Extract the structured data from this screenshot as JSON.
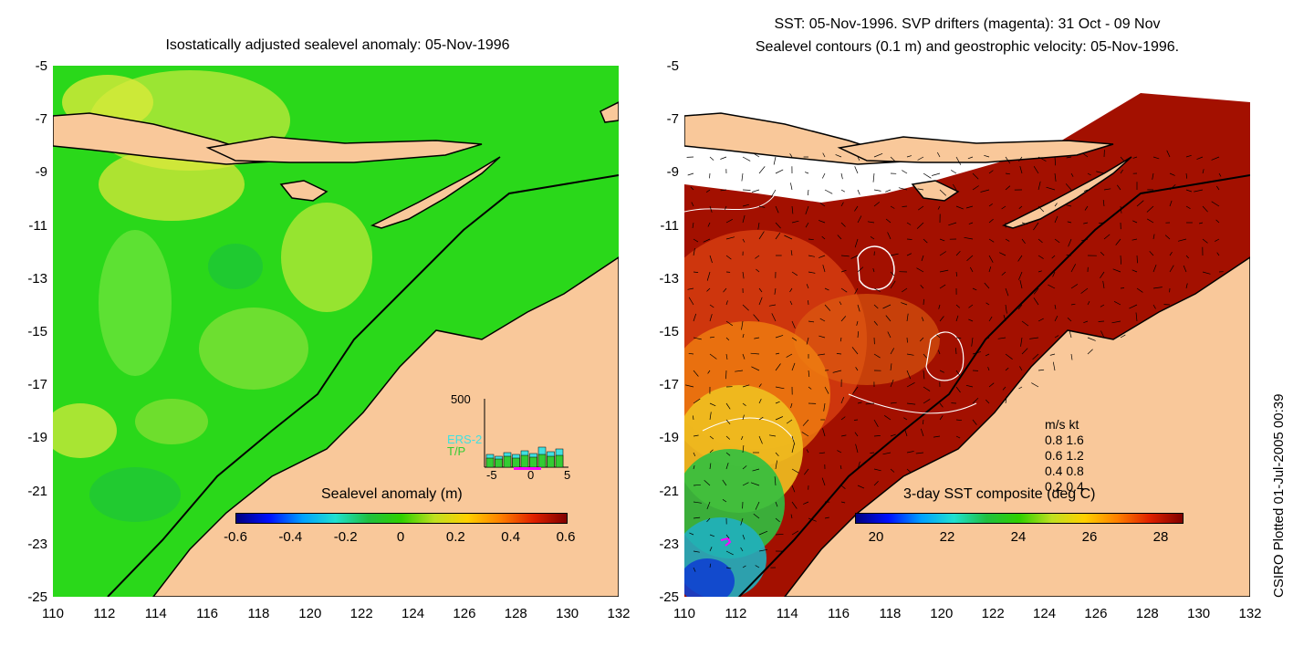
{
  "left_panel": {
    "title": "Isostatically adjusted sealevel anomaly: 05-Nov-1996",
    "colorbar_label": "Sealevel anomaly (m)",
    "colorbar_ticks": [
      "-0.6",
      "-0.4",
      "-0.2",
      "0",
      "0.2",
      "0.4",
      "0.6"
    ],
    "inset": {
      "ymax_label": "500",
      "series_labels": [
        "ERS-2",
        "T/P"
      ],
      "x_ticks": [
        "-5",
        "0",
        "5"
      ],
      "colors": {
        "ers2": "#40e0e0",
        "tp": "#33cc33"
      }
    }
  },
  "right_panel": {
    "title_line1": "SST: 05-Nov-1996. SVP drifters (magenta): 31 Oct - 09 Nov",
    "title_line2": "Sealevel contours (0.1 m) and geostrophic velocity: 05-Nov-1996.",
    "colorbar_label": "3-day SST composite (deg C)",
    "colorbar_ticks": [
      "20",
      "22",
      "24",
      "26",
      "28"
    ],
    "velocity_legend": {
      "header": "m/s  kt",
      "rows": [
        "0.8  1.6",
        "0.6  1.2",
        "0.4  0.8",
        "0.2  0.4"
      ]
    }
  },
  "axes": {
    "y_ticks": [
      "-5",
      "-7",
      "-9",
      "-11",
      "-13",
      "-15",
      "-17",
      "-19",
      "-21",
      "-23",
      "-25"
    ],
    "x_ticks": [
      "110",
      "112",
      "114",
      "116",
      "118",
      "120",
      "122",
      "124",
      "126",
      "128",
      "130",
      "132"
    ]
  },
  "credit": "CSIRO Plotted 01-Jul-2005 00:39",
  "colors": {
    "land": "#f9c89a",
    "sea_green": "#22dd11",
    "sst_dark": "#a31000"
  }
}
